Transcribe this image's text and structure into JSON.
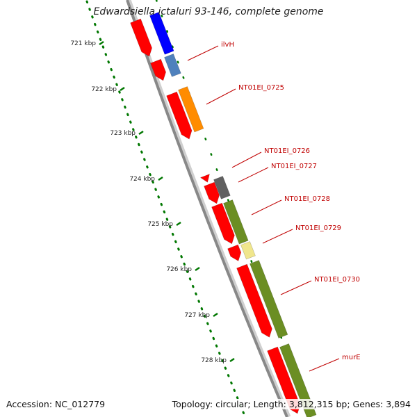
{
  "title": "Edwardsiella ictaluri 93-146, complete genome",
  "footer": {
    "accession": "Accession: NC_012779",
    "stats": "Topology: circular; Length: 3,812,315 bp; Genes: 3,894"
  },
  "ticks": [
    "721 kbp",
    "722 kbp",
    "723 kbp",
    "724 kbp",
    "725 kbp",
    "726 kbp",
    "727 kbp",
    "728 kbp"
  ],
  "genes": [
    {
      "label": "ilvH",
      "color": "#4f81bd"
    },
    {
      "label": "NT01EI_0725",
      "color": "#ff8c00"
    },
    {
      "label": "NT01EI_0726",
      "color": "#ff0000"
    },
    {
      "label": "NT01EI_0727",
      "color": "#606060"
    },
    {
      "label": "NT01EI_0728",
      "color": "#6b8e23"
    },
    {
      "label": "NT01EI_0729",
      "color": "#f0e68c"
    },
    {
      "label": "NT01EI_0730",
      "color": "#6b8e23"
    },
    {
      "label": "murE",
      "color": "#6b8e23"
    }
  ],
  "colors": {
    "cds_arrow": "#ff0000",
    "tick_green": "#007700",
    "backbone": "#888888",
    "label_red": "#c00000"
  }
}
